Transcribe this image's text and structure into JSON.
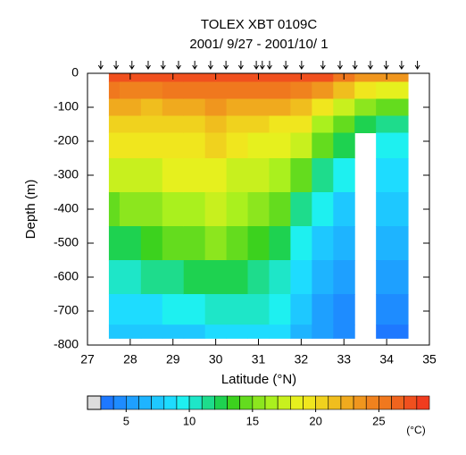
{
  "chart_data": {
    "type": "heatmap",
    "title": "TOLEX XBT 0109C",
    "subtitle": "2001/ 9/27 - 2001/10/ 1",
    "x_label": "Latitude (°N)",
    "y_label": "Depth (m)",
    "xlim": [
      27,
      35
    ],
    "xticks": [
      27,
      28,
      29,
      30,
      31,
      32,
      33,
      34,
      35
    ],
    "ylim": [
      -800,
      0
    ],
    "yticks": [
      0,
      -100,
      -200,
      -300,
      -400,
      -500,
      -600,
      -700,
      -800
    ],
    "stations": [
      27.31,
      27.67,
      28.04,
      28.42,
      28.77,
      29.13,
      29.51,
      29.88,
      30.24,
      30.59,
      30.95,
      31.09,
      31.26,
      31.64,
      32.01,
      32.51,
      32.91,
      33.26,
      33.62,
      33.99,
      34.35,
      34.72
    ],
    "x": [
      27.5,
      28,
      28.5,
      29,
      29.5,
      30,
      30.5,
      31,
      31.5,
      32,
      32.5,
      33,
      33.5,
      34,
      34.5
    ],
    "y": [
      0,
      -50,
      -100,
      -150,
      -200,
      -300,
      -400,
      -500,
      -600,
      -700,
      -780
    ],
    "z": [
      [
        27.5,
        25,
        22,
        20,
        19,
        17,
        14.5,
        12,
        10,
        8,
        7
      ],
      [
        27.5,
        24.5,
        22,
        20,
        19,
        17.5,
        15,
        12.5,
        10.5,
        8.5,
        7
      ],
      [
        27.5,
        24.5,
        21.5,
        20,
        19,
        17.5,
        15.5,
        13,
        11,
        8.5,
        7
      ],
      [
        27.5,
        25,
        22,
        20.5,
        19.5,
        18,
        16,
        14,
        11.5,
        9,
        7
      ],
      [
        27.5,
        25,
        22.5,
        20.5,
        19.5,
        18,
        16.5,
        14.5,
        12,
        9.5,
        7.5
      ],
      [
        27.5,
        25,
        23,
        21,
        20,
        18.5,
        17,
        15,
        12.5,
        10,
        8
      ],
      [
        27.5,
        25,
        22.5,
        20.5,
        19.5,
        17.5,
        16,
        14,
        12,
        10,
        8
      ],
      [
        27.5,
        25,
        22,
        20,
        18.5,
        17,
        15,
        13,
        11.5,
        10,
        8.5
      ],
      [
        27.5,
        25,
        22,
        19.5,
        18,
        16,
        14,
        12,
        10.5,
        9,
        8
      ],
      [
        27.5,
        24.5,
        21,
        19,
        17,
        14,
        11.5,
        9.5,
        8,
        7,
        6
      ],
      [
        27.5,
        23,
        19,
        16,
        14,
        11,
        9,
        7.5,
        6.5,
        5.5,
        5
      ],
      [
        25,
        21,
        17,
        14,
        12,
        9,
        7,
        6,
        5,
        4.5,
        4
      ],
      [
        23,
        19,
        15,
        12,
        null,
        null,
        null,
        null,
        null,
        null,
        null
      ],
      [
        23,
        18,
        14,
        11,
        9,
        8,
        7,
        6,
        5,
        4,
        3.5
      ],
      [
        23,
        18,
        14,
        11,
        9,
        8,
        7,
        6,
        5,
        4,
        3.5
      ]
    ],
    "colorbar": {
      "lim": [
        3,
        29
      ],
      "ticks": [
        5,
        10,
        15,
        20,
        25
      ],
      "unit": "(°C)",
      "missing_color": "#dddddd",
      "colors": [
        "#1e78ff",
        "#1e8cff",
        "#1ea0ff",
        "#1eb4ff",
        "#1ec8ff",
        "#1edcff",
        "#1ef0f0",
        "#1ee6c8",
        "#1edc8c",
        "#1ed250",
        "#3cd21e",
        "#64dc1e",
        "#8ce61e",
        "#aaf01e",
        "#c8f01e",
        "#e6f01e",
        "#f0e61e",
        "#f0d21e",
        "#f0be1e",
        "#f0aa1e",
        "#f0961e",
        "#f0821e",
        "#f0781e",
        "#f0641e",
        "#f0501e",
        "#f03c1e"
      ]
    }
  }
}
